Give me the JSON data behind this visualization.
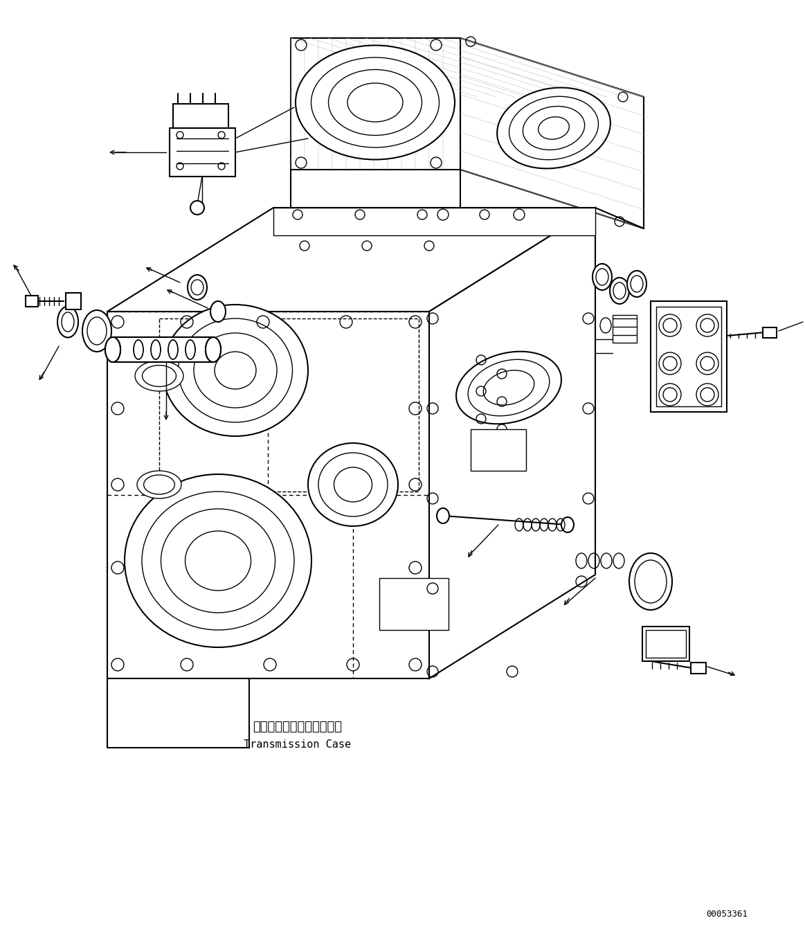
{
  "label_japanese": "トランスミッションケース",
  "label_english": "Transmission Case",
  "part_number": "00053361",
  "background_color": "#ffffff",
  "line_color": "#000000",
  "figure_width": 11.63,
  "figure_height": 13.52,
  "dpi": 100
}
